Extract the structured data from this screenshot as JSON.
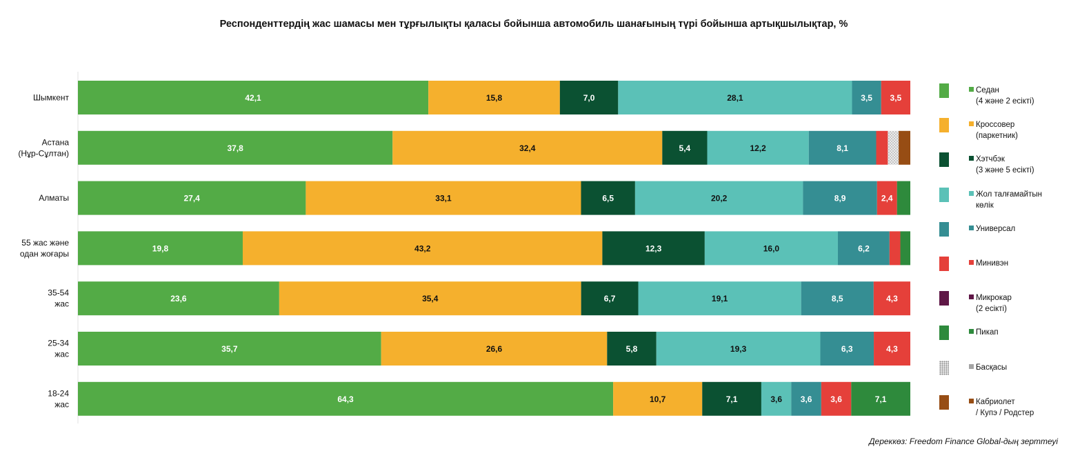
{
  "chart_data": {
    "type": "bar",
    "orientation": "horizontal",
    "stacked": true,
    "title": "Респонденттердің жас шамасы мен тұрғылықты қаласы бойынша автомобиль шанағының түрі бойынша артықшылықтар, %",
    "xlim": [
      0,
      100
    ],
    "grid": false,
    "legend_position": "right",
    "categories": [
      "Шымкент",
      "Астана\n(Нұр-Сұлтан)",
      "Алматы",
      "55 жас және\nодан жоғары",
      "35-54\nжас",
      "25-34\nжас",
      "18-24\nжас"
    ],
    "series": [
      {
        "name": "Седан\n(4 және 2 есікті)",
        "color": "#53ab46",
        "label_color": "#ffffff",
        "values": [
          42.1,
          37.8,
          27.4,
          19.8,
          23.6,
          35.7,
          64.3
        ],
        "labels": [
          "42,1",
          "37,8",
          "27,4",
          "19,8",
          "23,6",
          "35,7",
          "64,3"
        ]
      },
      {
        "name": "Кроссовер\n(паркетник)",
        "color": "#f5b02d",
        "label_color": "#111111",
        "values": [
          15.8,
          32.4,
          33.1,
          43.2,
          35.4,
          26.6,
          10.7
        ],
        "labels": [
          "15,8",
          "32,4",
          "33,1",
          "43,2",
          "35,4",
          "26,6",
          "10,7"
        ]
      },
      {
        "name": "Хэтчбэк\n(3 және 5 есікті)",
        "color": "#0b5132",
        "label_color": "#ffffff",
        "values": [
          7.0,
          5.4,
          6.5,
          12.3,
          6.7,
          5.8,
          7.1
        ],
        "labels": [
          "7,0",
          "5,4",
          "6,5",
          "12,3",
          "6,7",
          "5,8",
          "7,1"
        ]
      },
      {
        "name": "Жол талғамайтын\nкөлік",
        "color": "#5bc1b7",
        "label_color": "#111111",
        "values": [
          28.1,
          12.2,
          20.2,
          16.0,
          19.1,
          19.3,
          3.6
        ],
        "labels": [
          "28,1",
          "12,2",
          "20,2",
          "16,0",
          "19,1",
          "19,3",
          "3,6"
        ]
      },
      {
        "name": "Универсал",
        "color": "#358e93",
        "label_color": "#ffffff",
        "values": [
          3.5,
          8.1,
          8.9,
          6.2,
          8.5,
          6.3,
          3.6
        ],
        "labels": [
          "3,5",
          "8,1",
          "8,9",
          "6,2",
          "8,5",
          "6,3",
          "3,6"
        ]
      },
      {
        "name": "Минивэн",
        "color": "#e5403a",
        "label_color": "#ffffff",
        "values": [
          3.5,
          1.4,
          2.4,
          1.3,
          4.3,
          4.3,
          3.6
        ],
        "labels": [
          "3,5",
          "",
          "2,4",
          "",
          "4,3",
          "4,3",
          "3,6"
        ]
      },
      {
        "name": "Микрокар\n(2 есікті)",
        "color": "#5f1746",
        "label_color": "#ffffff",
        "values": [
          0,
          0,
          0,
          0,
          0,
          0,
          0
        ],
        "labels": [
          "",
          "",
          "",
          "",
          "",
          "",
          ""
        ]
      },
      {
        "name": "Пикап",
        "color": "#2e8a3c",
        "label_color": "#ffffff",
        "values": [
          0,
          0,
          1.6,
          1.2,
          0,
          0,
          7.1
        ],
        "labels": [
          "",
          "",
          "",
          "",
          "",
          "",
          "7,1"
        ]
      },
      {
        "name": "Басқасы",
        "color": "#c8c8c8",
        "pattern": "dots",
        "label_color": "#111111",
        "values": [
          0,
          1.3,
          0,
          0,
          0,
          0,
          0
        ],
        "labels": [
          "",
          "",
          "",
          "",
          "",
          "",
          ""
        ]
      },
      {
        "name": "Кабриолет\n/ Купэ / Родстер",
        "color": "#974d14",
        "label_color": "#ffffff",
        "values": [
          0,
          1.4,
          0,
          0,
          0,
          0,
          0
        ],
        "labels": [
          "",
          "",
          "",
          "",
          "",
          "",
          ""
        ]
      }
    ]
  },
  "source_note": "Дереккөз: Freedom Finance Global-дың зерттеуі"
}
